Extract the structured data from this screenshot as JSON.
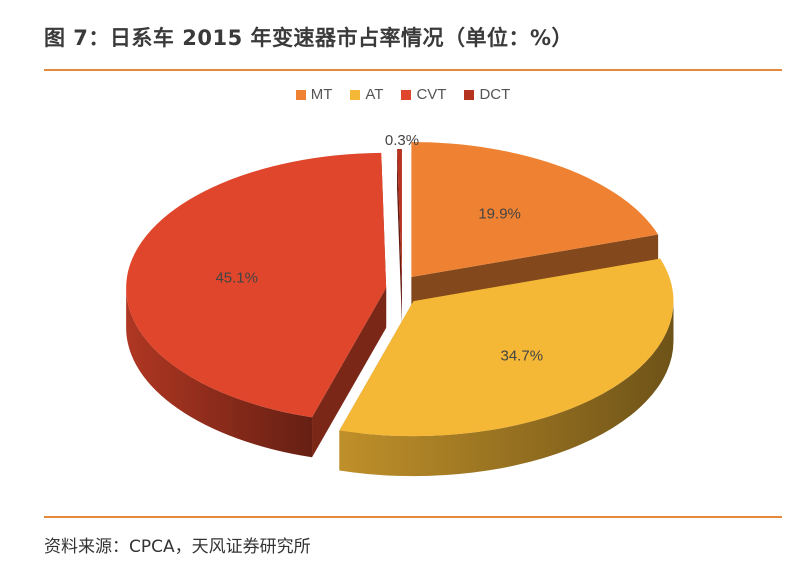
{
  "title": "图 7：日系车 2015 年变速器市占率情况（单位：%）",
  "source": "资料来源：CPCA，天风证券研究所",
  "colors": {
    "accent_rule": "#e48a3a"
  },
  "chart_data": {
    "type": "pie",
    "title": "图 7：日系车 2015 年变速器市占率情况（单位：%）",
    "legend_position": "top",
    "style": "3d-exploded",
    "categories": [
      "MT",
      "AT",
      "CVT",
      "DCT"
    ],
    "values": [
      19.9,
      34.7,
      45.1,
      0.3
    ],
    "labels": [
      "19.9%",
      "34.7%",
      "45.1%",
      "0.3%"
    ],
    "colors": [
      "#ee8232",
      "#f5b836",
      "#e0462b",
      "#b5331f"
    ]
  }
}
